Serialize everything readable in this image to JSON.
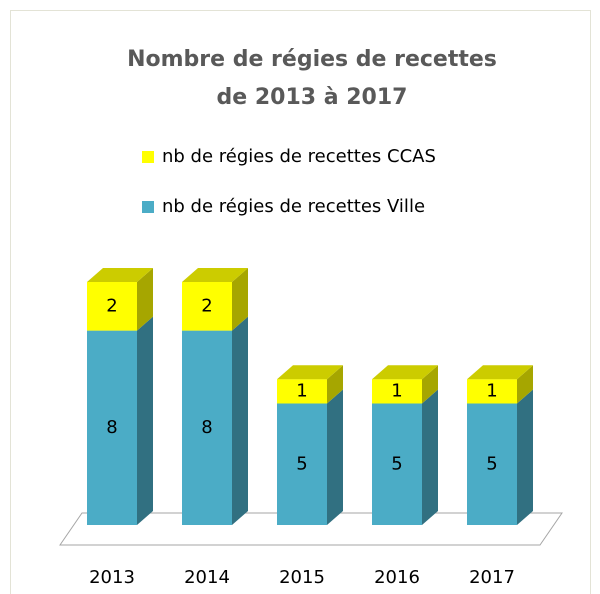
{
  "chart_data": {
    "type": "bar3d_stacked",
    "title": [
      "Nombre de régies de recettes",
      "de 2013 à 2017"
    ],
    "categories": [
      "2013",
      "2014",
      "2015",
      "2016",
      "2017"
    ],
    "series": [
      {
        "name": "nb de régies de recettes Ville",
        "color": "#4bacc6",
        "values": [
          8,
          8,
          5,
          5,
          5
        ]
      },
      {
        "name": "nb de régies de recettes CCAS",
        "color": "#ffff00",
        "values": [
          2,
          2,
          1,
          1,
          1
        ]
      }
    ],
    "legend": "top"
  }
}
